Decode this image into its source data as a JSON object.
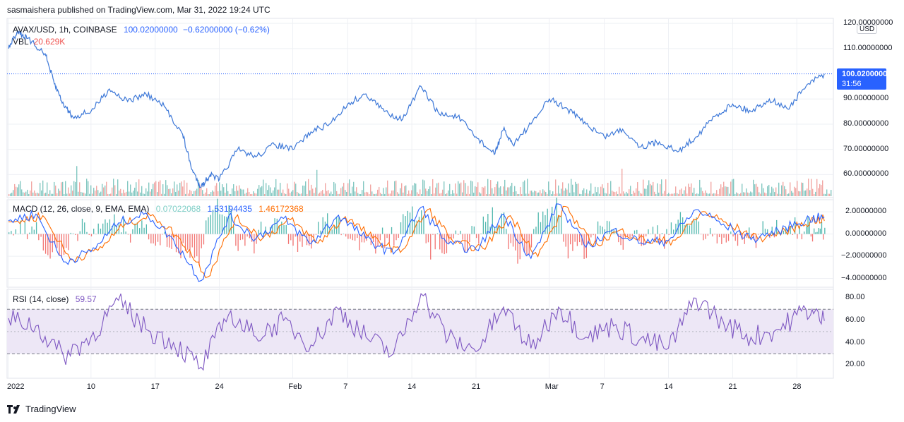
{
  "header": {
    "published": "sasmaishera published on TradingView.com, Mar 31, 2022 19:24 UTC"
  },
  "colors": {
    "price_line": "#3d78d8",
    "vol_up": "#5bb5ad",
    "vol_down": "#ec8a86",
    "macd_line": "#2962ff",
    "signal_line": "#ff6d00",
    "hist_up": "#26a69a",
    "hist_down": "#ef5350",
    "rsi_line": "#7e57c2",
    "rsi_band": "#ede7f6",
    "last_price_tag": "#2962ff",
    "grid": "#eef0f4"
  },
  "legends": {
    "main": {
      "symbol": "AVAX/USD, 1h, COINBASE",
      "ohlc": "100.02000000",
      "change": "−0.62000000 (−0.62%)"
    },
    "volume": {
      "label": "VBL",
      "value": "20.629K"
    },
    "macd": {
      "label": "MACD (12, 26, close, 9, EMA, EMA)",
      "hist": "0.07022068",
      "macd": "1.53194435",
      "signal": "1.46172368"
    },
    "rsi": {
      "label": "RSI (14, close)",
      "value": "59.57"
    }
  },
  "price_axis": {
    "currency": "USD",
    "ticks": [
      "120.00000000",
      "110.00000000",
      "90.00000000",
      "80.00000000",
      "70.00000000",
      "60.00000000"
    ],
    "last_price": "100.02000000",
    "countdown": "31:56"
  },
  "macd_axis": {
    "ticks": [
      "2.00000000",
      "0.00000000",
      "−2.00000000",
      "−4.00000000"
    ]
  },
  "rsi_axis": {
    "ticks": [
      "80.00",
      "60.00",
      "40.00",
      "20.00"
    ]
  },
  "time_axis": {
    "ticks": [
      "2022",
      "10",
      "17",
      "24",
      "Feb",
      "7",
      "14",
      "21",
      "Mar",
      "7",
      "14",
      "21",
      "28"
    ]
  },
  "footer": {
    "brand": "TradingView"
  },
  "chart_data": [
    {
      "type": "line",
      "name": "price",
      "x": [
        "2022-01-01",
        "2022-01-02",
        "2022-01-03",
        "2022-01-05",
        "2022-01-06",
        "2022-01-07",
        "2022-01-08",
        "2022-01-10",
        "2022-01-12",
        "2022-01-14",
        "2022-01-16",
        "2022-01-18",
        "2022-01-20",
        "2022-01-21",
        "2022-01-22",
        "2022-01-23",
        "2022-01-24",
        "2022-01-26",
        "2022-01-28",
        "2022-01-30",
        "2022-02-01",
        "2022-02-03",
        "2022-02-05",
        "2022-02-07",
        "2022-02-09",
        "2022-02-11",
        "2022-02-13",
        "2022-02-15",
        "2022-02-17",
        "2022-02-19",
        "2022-02-21",
        "2022-02-23",
        "2022-02-24",
        "2022-02-25",
        "2022-02-27",
        "2022-03-01",
        "2022-03-03",
        "2022-03-05",
        "2022-03-07",
        "2022-03-09",
        "2022-03-11",
        "2022-03-13",
        "2022-03-15",
        "2022-03-17",
        "2022-03-19",
        "2022-03-21",
        "2022-03-23",
        "2022-03-25",
        "2022-03-27",
        "2022-03-29",
        "2022-03-31"
      ],
      "y": [
        110,
        117,
        114,
        108,
        96,
        88,
        83,
        85,
        94,
        89,
        92,
        87,
        76,
        62,
        55,
        60,
        58,
        70,
        67,
        72,
        70,
        77,
        80,
        88,
        92,
        85,
        82,
        95,
        84,
        83,
        75,
        68,
        78,
        72,
        80,
        90,
        86,
        80,
        75,
        78,
        71,
        73,
        69,
        75,
        83,
        88,
        85,
        90,
        86,
        95,
        100
      ],
      "ylim": [
        52,
        122
      ]
    },
    {
      "type": "bar",
      "name": "volume",
      "note": "hourly volume bars along the bottom of the price pane"
    },
    {
      "type": "line",
      "name": "macd",
      "series": [
        {
          "x": [
            "2022-01-01",
            "2022-01-04",
            "2022-01-07",
            "2022-01-10",
            "2022-01-13",
            "2022-01-16",
            "2022-01-19",
            "2022-01-22",
            "2022-01-25",
            "2022-01-28",
            "2022-01-31",
            "2022-02-03",
            "2022-02-06",
            "2022-02-09",
            "2022-02-12",
            "2022-02-15",
            "2022-02-18",
            "2022-02-21",
            "2022-02-24",
            "2022-02-27",
            "2022-03-02",
            "2022-03-05",
            "2022-03-08",
            "2022-03-11",
            "2022-03-14",
            "2022-03-17",
            "2022-03-20",
            "2022-03-23",
            "2022-03-26",
            "2022-03-29",
            "2022-03-31"
          ],
          "y": [
            1.2,
            1.8,
            -2.5,
            -1.6,
            1.0,
            1.9,
            -0.5,
            -4.2,
            1.6,
            -0.4,
            1.4,
            -0.9,
            1.7,
            -0.4,
            -1.8,
            2.4,
            -0.9,
            -1.4,
            1.8,
            -2.2,
            2.7,
            -1.2,
            0.4,
            -0.8,
            -0.6,
            2.2,
            0.9,
            -0.5,
            0.3,
            1.3,
            1.53
          ]
        }
      ],
      "ylim": [
        -4.6,
        2.9
      ]
    },
    {
      "type": "line",
      "name": "rsi",
      "x": [
        "2022-01-01",
        "2022-01-04",
        "2022-01-07",
        "2022-01-10",
        "2022-01-13",
        "2022-01-16",
        "2022-01-19",
        "2022-01-22",
        "2022-01-25",
        "2022-01-28",
        "2022-01-31",
        "2022-02-03",
        "2022-02-06",
        "2022-02-09",
        "2022-02-12",
        "2022-02-15",
        "2022-02-18",
        "2022-02-21",
        "2022-02-24",
        "2022-02-27",
        "2022-03-02",
        "2022-03-05",
        "2022-03-08",
        "2022-03-11",
        "2022-03-14",
        "2022-03-17",
        "2022-03-20",
        "2022-03-23",
        "2022-03-26",
        "2022-03-29",
        "2022-03-31"
      ],
      "y": [
        62,
        55,
        28,
        45,
        78,
        52,
        40,
        18,
        65,
        45,
        60,
        38,
        70,
        45,
        30,
        84,
        44,
        32,
        72,
        35,
        72,
        45,
        55,
        44,
        35,
        80,
        58,
        45,
        52,
        70,
        59.57
      ],
      "levels": [
        70,
        50,
        30
      ],
      "ylim": [
        10,
        86
      ]
    }
  ]
}
